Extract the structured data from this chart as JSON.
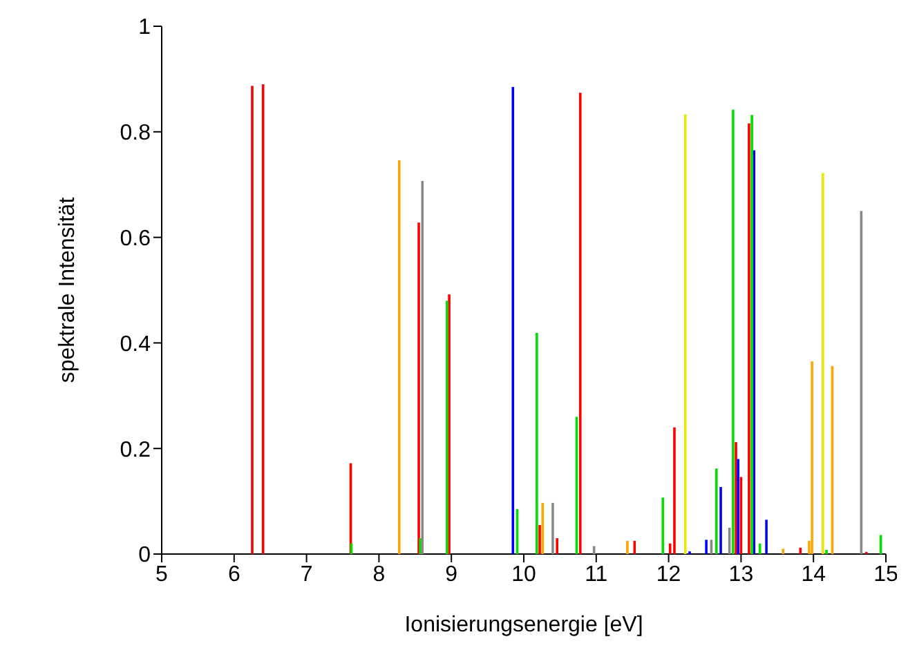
{
  "chart_data": {
    "type": "bar",
    "xlabel": "Ionisierungsenergie [eV]",
    "ylabel": "spektrale Intensität",
    "xlim": [
      5,
      15
    ],
    "xticks": [
      5,
      6,
      7,
      8,
      9,
      10,
      11,
      12,
      13,
      14,
      15
    ],
    "ylim": [
      0,
      1
    ],
    "yticks": [
      0,
      0.2,
      0.4,
      0.6,
      0.8,
      1
    ],
    "grid": false,
    "series": [
      {
        "color": "#ff0000",
        "x": [
          6.25,
          6.4,
          7.61,
          8.55,
          8.97,
          10.22,
          10.46,
          10.78,
          11.53,
          12.02,
          12.08,
          12.93,
          13.0,
          13.11,
          13.82,
          14.73
        ],
        "values": [
          0.887,
          0.89,
          0.172,
          0.628,
          0.492,
          0.055,
          0.03,
          0.874,
          0.025,
          0.02,
          0.24,
          0.212,
          0.146,
          0.816,
          0.012,
          0.004
        ]
      },
      {
        "color": "#0000ff",
        "x": [
          9.85,
          12.29,
          12.52,
          12.72,
          12.96,
          13.18,
          13.35
        ],
        "values": [
          0.885,
          0.005,
          0.027,
          0.127,
          0.18,
          0.765,
          0.065
        ]
      },
      {
        "color": "#00e000",
        "x": [
          7.62,
          8.57,
          8.94,
          9.91,
          10.18,
          10.73,
          11.92,
          12.66,
          12.89,
          13.15,
          13.26,
          14.18,
          14.93
        ],
        "values": [
          0.02,
          0.03,
          0.48,
          0.085,
          0.419,
          0.26,
          0.107,
          0.162,
          0.842,
          0.832,
          0.02,
          0.008,
          0.036
        ]
      },
      {
        "color": "#ffa500",
        "x": [
          8.28,
          10.26,
          11.43,
          13.58,
          13.94,
          13.98,
          14.26
        ],
        "values": [
          0.746,
          0.097,
          0.025,
          0.01,
          0.025,
          0.365,
          0.356
        ]
      },
      {
        "color": "#e8e800",
        "x": [
          12.23,
          14.13
        ],
        "values": [
          0.833,
          0.722
        ]
      },
      {
        "color": "#888888",
        "x": [
          8.6,
          10.4,
          10.97,
          12.59,
          12.84,
          14.66
        ],
        "values": [
          0.707,
          0.097,
          0.015,
          0.027,
          0.05,
          0.65
        ]
      }
    ]
  }
}
